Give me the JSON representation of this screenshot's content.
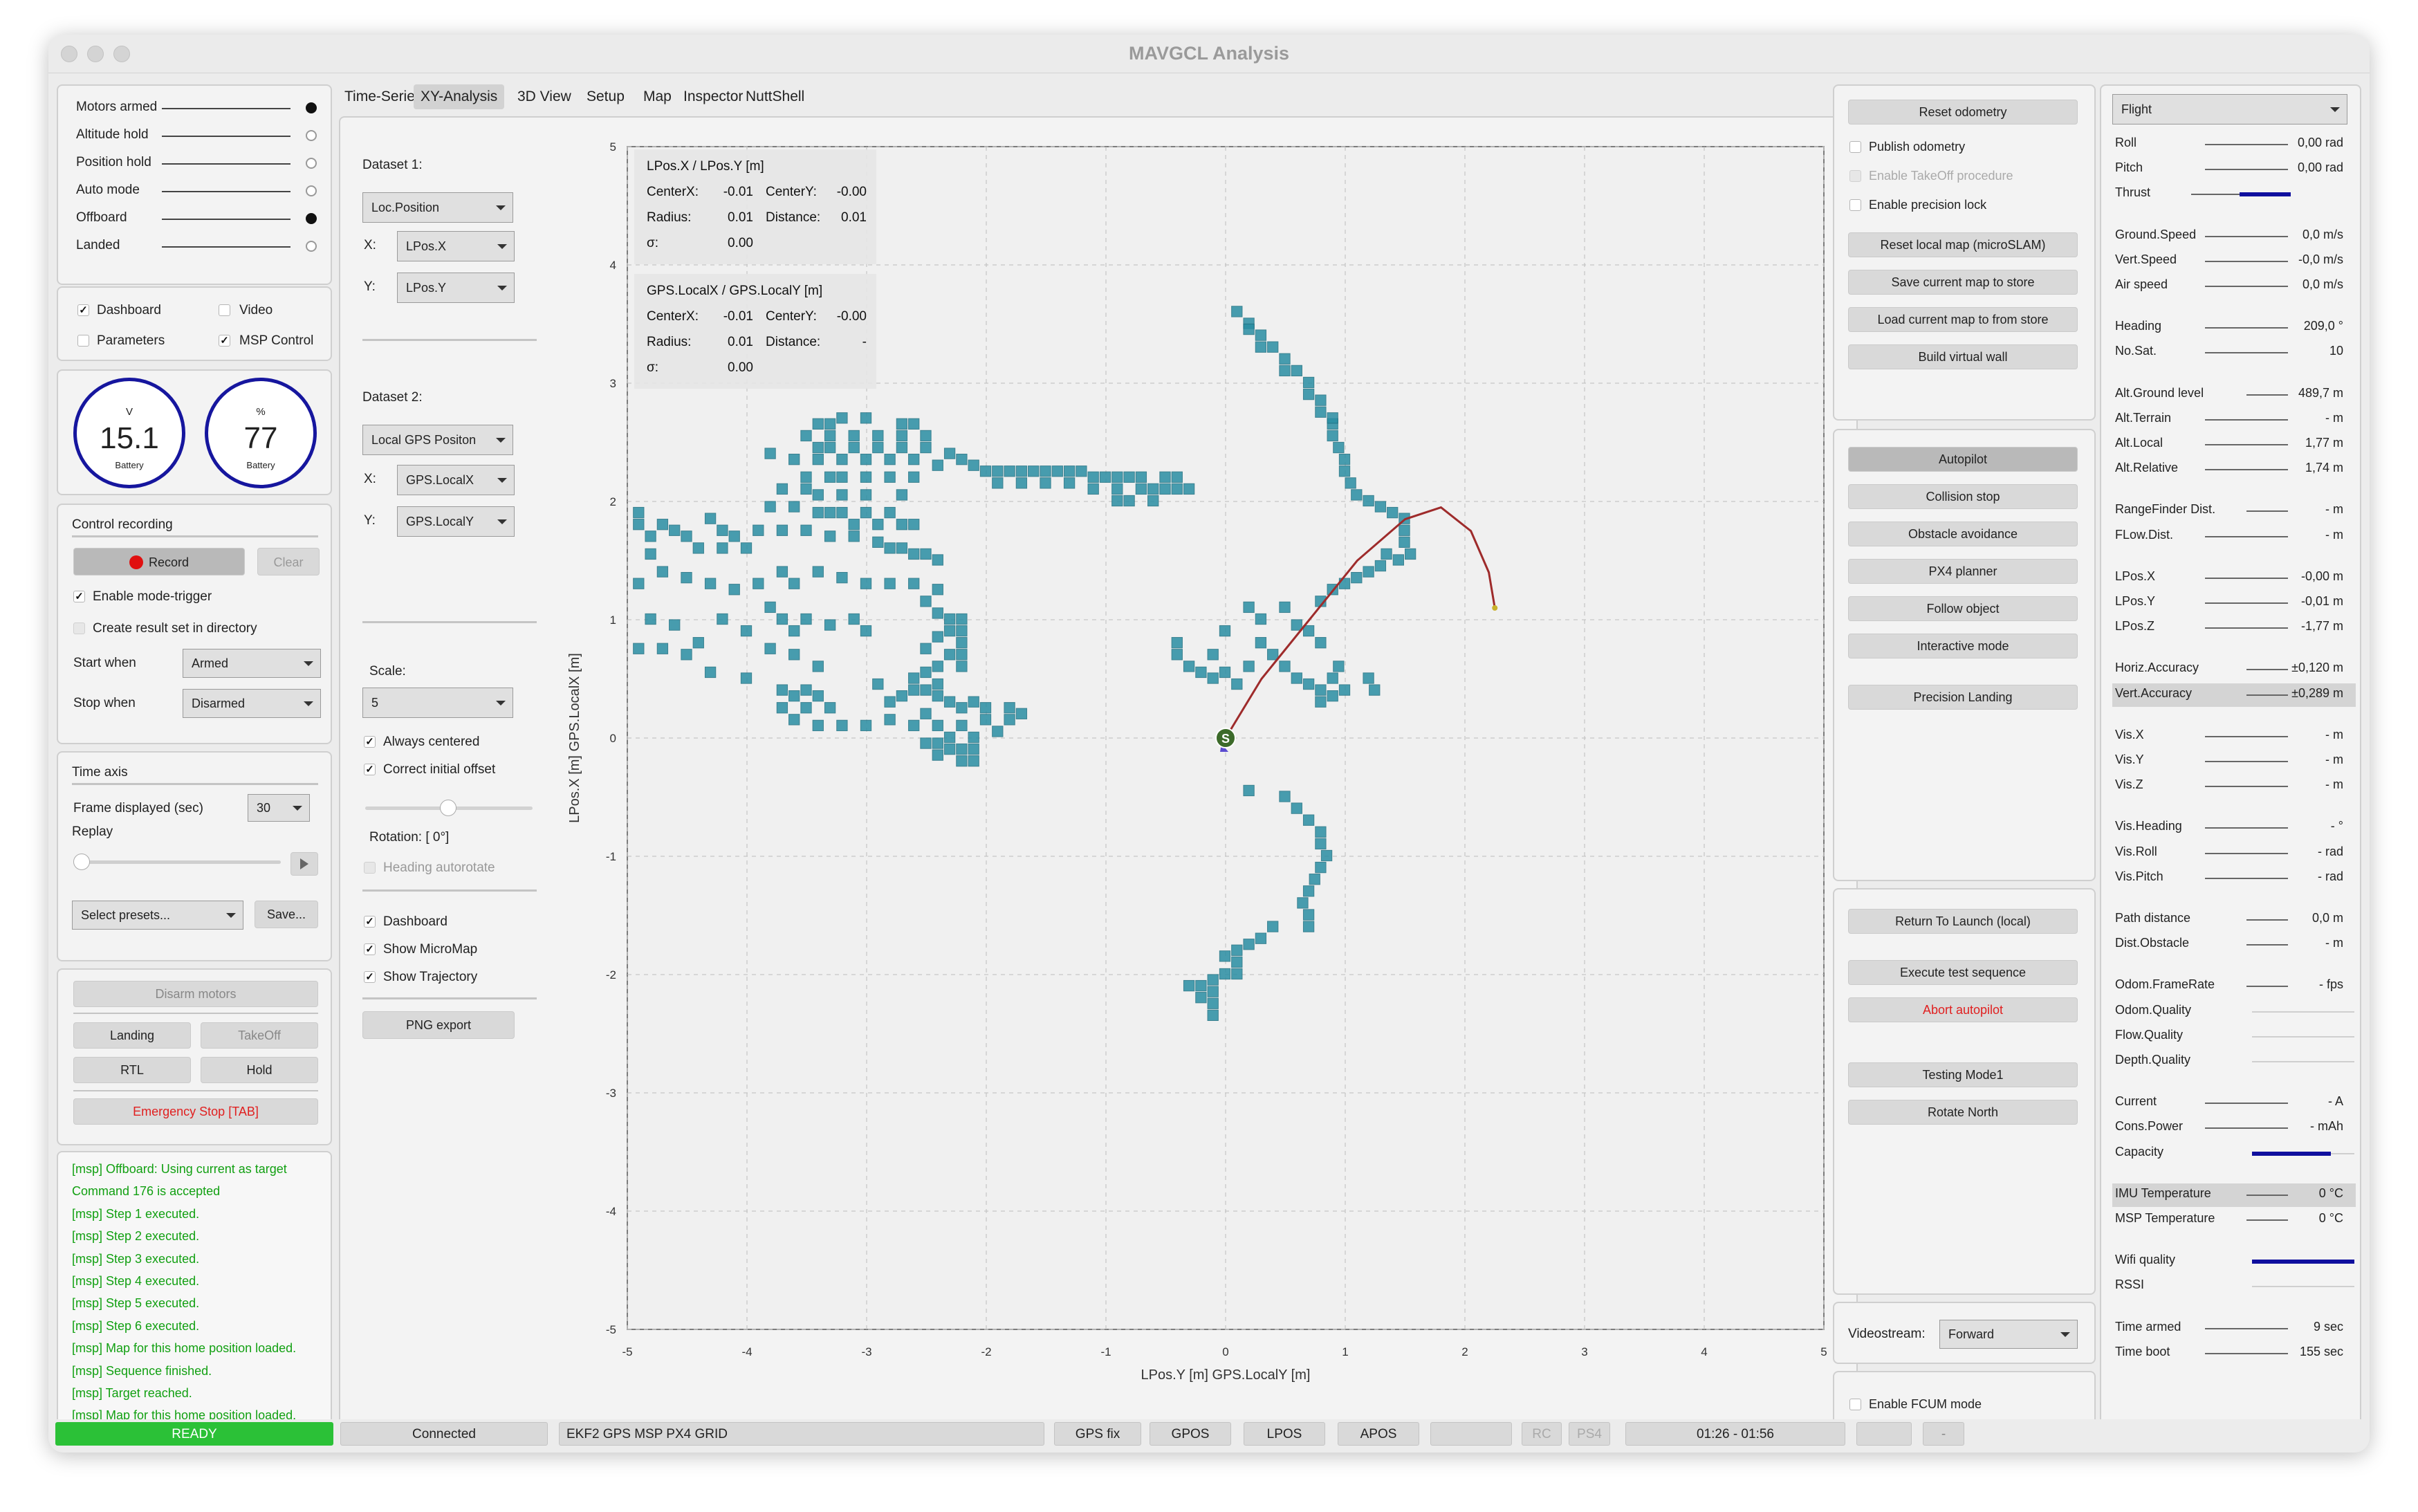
{
  "window": {
    "title": "MAVGCL Analysis"
  },
  "modes": [
    {
      "label": "Motors armed",
      "on": true
    },
    {
      "label": "Altitude hold",
      "on": false
    },
    {
      "label": "Position hold",
      "on": false
    },
    {
      "label": "Auto mode",
      "on": false
    },
    {
      "label": "Offboard",
      "on": true
    },
    {
      "label": "Landed",
      "on": false
    }
  ],
  "views": {
    "dashboard": "Dashboard",
    "video": "Video",
    "parameters": "Parameters",
    "msp_control": "MSP Control"
  },
  "gauges": {
    "voltage": {
      "unit": "V",
      "value": "15.1",
      "label": "Battery"
    },
    "percent": {
      "unit": "%",
      "value": "77",
      "label": "Battery"
    }
  },
  "recording": {
    "title": "Control recording",
    "record": "Record",
    "clear": "Clear",
    "enable_trigger": "Enable mode-trigger",
    "create_result": "Create result set in directory",
    "start_when_label": "Start when",
    "start_when": "Armed",
    "stop_when_label": "Stop when",
    "stop_when": "Disarmed"
  },
  "timeaxis": {
    "title": "Time axis",
    "frame_label": "Frame displayed (sec)",
    "frame_value": "30",
    "replay": "Replay",
    "presets": "Select presets...",
    "save": "Save..."
  },
  "commands": {
    "disarm": "Disarm motors",
    "landing": "Landing",
    "takeoff": "TakeOff",
    "rtl": "RTL",
    "hold": "Hold",
    "emergency": "Emergency Stop [TAB]"
  },
  "log": [
    "[msp] Offboard: Using current as target",
    "Command 176 is accepted",
    "[msp] Step 1 executed.",
    "[msp] Step 2 executed.",
    "[msp] Step 3 executed.",
    "[msp] Step 4 executed.",
    "[msp] Step 5 executed.",
    "[msp] Step 6 executed.",
    "[msp] Map for this home position loaded.",
    "[msp] Sequence finished.",
    "[msp] Target reached.",
    "[msp] Map for this home position loaded."
  ],
  "tabs": [
    "Time-Series",
    "XY-Analysis",
    "3D View",
    "Setup",
    "Map",
    "Inspector",
    "NuttShell"
  ],
  "xy": {
    "dataset1": {
      "title": "Dataset 1:",
      "source": "Loc.Position",
      "x_label": "X:",
      "x": "LPos.X",
      "y_label": "Y:",
      "y": "LPos.Y"
    },
    "dataset2": {
      "title": "Dataset 2:",
      "source": "Local GPS Positon",
      "x_label": "X:",
      "x": "GPS.LocalX",
      "y_label": "Y:",
      "y": "GPS.LocalY"
    },
    "scale_label": "Scale:",
    "scale": "5",
    "always_centered": "Always centered",
    "correct_offset": "Correct initial offset",
    "rotation": "Rotation: [ 0°]",
    "heading_autorotate": "Heading autorotate",
    "show_dashboard": "Dashboard",
    "show_micromap": "Show MicroMap",
    "show_trajectory": "Show Trajectory",
    "png_export": "PNG export"
  },
  "chart_data": {
    "type": "scatter",
    "xlabel": "LPos.Y [m] GPS.LocalY [m]",
    "ylabel": "LPos.X [m] GPS.LocalX [m]",
    "xlim": [
      -5,
      5
    ],
    "ylim": [
      -5,
      5
    ],
    "grid": true,
    "x_ticks": [
      "-5",
      "-4",
      "-3",
      "-2",
      "-1",
      "0",
      "1",
      "2",
      "3",
      "4",
      "5"
    ],
    "y_ticks": [
      "5",
      "4",
      "3",
      "2",
      "1",
      "0",
      "-1",
      "-2",
      "-3",
      "-4",
      "-5"
    ],
    "start_marker": "S",
    "stats": [
      {
        "title": "LPos.X / LPos.Y [m]",
        "centerx_label": "CenterX:",
        "centerx": "-0.01",
        "centery_label": "CenterY:",
        "centery": "-0.00",
        "radius_label": "Radius:",
        "radius": "0.01",
        "distance_label": "Distance:",
        "distance": "0.01",
        "sigma_label": "σ:",
        "sigma": "0.00"
      },
      {
        "title": "GPS.LocalX / GPS.LocalY [m]",
        "centerx_label": "CenterX:",
        "centerx": "-0.01",
        "centery_label": "CenterY:",
        "centery": "-0.00",
        "radius_label": "Radius:",
        "radius": "0.01",
        "distance_label": "Distance:",
        "distance": "-",
        "sigma_label": "σ:",
        "sigma": "0.00"
      }
    ],
    "trajectory": [
      [
        0,
        0
      ],
      [
        0.3,
        0.5
      ],
      [
        0.7,
        1.0
      ],
      [
        1.1,
        1.5
      ],
      [
        1.5,
        1.85
      ],
      [
        1.8,
        1.95
      ],
      [
        2.05,
        1.75
      ],
      [
        2.2,
        1.4
      ],
      [
        2.25,
        1.1
      ]
    ],
    "obstacle_color": "#2a8ea3",
    "trajectory_color": "#9e2b2b"
  },
  "side": {
    "reset_odometry": "Reset odometry",
    "publish_odometry": "Publish odometry",
    "enable_takeoff": "Enable TakeOff procedure",
    "enable_precision_lock": "Enable precision lock",
    "reset_local_map": "Reset local map (microSLAM)",
    "save_map": "Save current map to store",
    "load_map": "Load current map to from store",
    "build_wall": "Build virtual wall",
    "autopilot": "Autopilot",
    "collision_stop": "Collision stop",
    "obstacle_avoidance": "Obstacle avoidance",
    "px4_planner": "PX4 planner",
    "follow_object": "Follow object",
    "interactive_mode": "Interactive mode",
    "precision_landing": "Precision Landing",
    "rtl_local": "Return To Launch (local)",
    "exec_test": "Execute test sequence",
    "abort_autopilot": "Abort autopilot",
    "testing_mode": "Testing Mode1",
    "rotate_north": "Rotate North",
    "videostream_label": "Videostream:",
    "videostream": "Forward",
    "enable_fcum": "Enable FCUM mode"
  },
  "telemetry": {
    "mode": "Flight",
    "rows": [
      {
        "label": "Roll",
        "value": "0,00 rad"
      },
      {
        "label": "Pitch",
        "value": "0,00 rad"
      },
      {
        "label": "Thrust",
        "value": "",
        "bar": 0.45
      },
      {
        "label": "Ground.Speed",
        "value": "0,0 m/s"
      },
      {
        "label": "Vert.Speed",
        "value": "-0,0 m/s"
      },
      {
        "label": "Air speed",
        "value": "0,0 m/s"
      },
      {
        "label": "Heading",
        "value": "209,0 °"
      },
      {
        "label": "No.Sat.",
        "value": "10"
      },
      {
        "label": "Alt.Ground level",
        "value": "489,7 m"
      },
      {
        "label": "Alt.Terrain",
        "value": "- m"
      },
      {
        "label": "Alt.Local",
        "value": "1,77 m"
      },
      {
        "label": "Alt.Relative",
        "value": "1,74 m"
      },
      {
        "label": "RangeFinder Dist.",
        "value": "- m"
      },
      {
        "label": "FLow.Dist.",
        "value": "- m"
      },
      {
        "label": "LPos.X",
        "value": "-0,00 m"
      },
      {
        "label": "LPos.Y",
        "value": "-0,01 m"
      },
      {
        "label": "LPos.Z",
        "value": "-1,77 m"
      },
      {
        "label": "Horiz.Accuracy",
        "value": "±0,120 m"
      },
      {
        "label": "Vert.Accuracy",
        "value": "±0,289 m",
        "hl": true
      },
      {
        "label": "Vis.X",
        "value": "- m"
      },
      {
        "label": "Vis.Y",
        "value": "- m"
      },
      {
        "label": "Vis.Z",
        "value": "- m"
      },
      {
        "label": "Vis.Heading",
        "value": "- °"
      },
      {
        "label": "Vis.Roll",
        "value": "- rad"
      },
      {
        "label": "Vis.Pitch",
        "value": "- rad"
      },
      {
        "label": "Path distance",
        "value": "0,0 m"
      },
      {
        "label": "Dist.Obstacle",
        "value": "- m"
      },
      {
        "label": "Odom.FrameRate",
        "value": "- fps"
      },
      {
        "label": "Odom.Quality",
        "value": "",
        "bar": 0
      },
      {
        "label": "Flow.Quality",
        "value": "",
        "bar": 0
      },
      {
        "label": "Depth.Quality",
        "value": "",
        "bar": 0
      },
      {
        "label": "Current",
        "value": "- A"
      },
      {
        "label": "Cons.Power",
        "value": "- mAh"
      },
      {
        "label": "Capacity",
        "value": "",
        "bar": 0.77
      },
      {
        "label": "IMU Temperature",
        "value": "0 °C",
        "hl": true
      },
      {
        "label": "MSP Temperature",
        "value": "0 °C"
      },
      {
        "label": "Wifi quality",
        "value": "",
        "bar": 1.0
      },
      {
        "label": "RSSI",
        "value": "",
        "bar": 0
      },
      {
        "label": "Time armed",
        "value": "9 sec"
      },
      {
        "label": "Time boot",
        "value": "155 sec"
      }
    ]
  },
  "statusbar": {
    "ready": "READY",
    "connected": "Connected",
    "sensors": "EKF2 GPS MSP PX4 GRID",
    "gps_fix": "GPS fix",
    "gpos": "GPOS",
    "lpos": "LPOS",
    "apos": "APOS",
    "rc": "RC",
    "ps4": "PS4",
    "time": "01:26 - 01:56",
    "dash": "-"
  },
  "colors": {
    "ready": "#2bc137",
    "record_dot": "#e01010",
    "alert": "#e02020",
    "log": "#12a012",
    "gauge": "#16169e"
  }
}
